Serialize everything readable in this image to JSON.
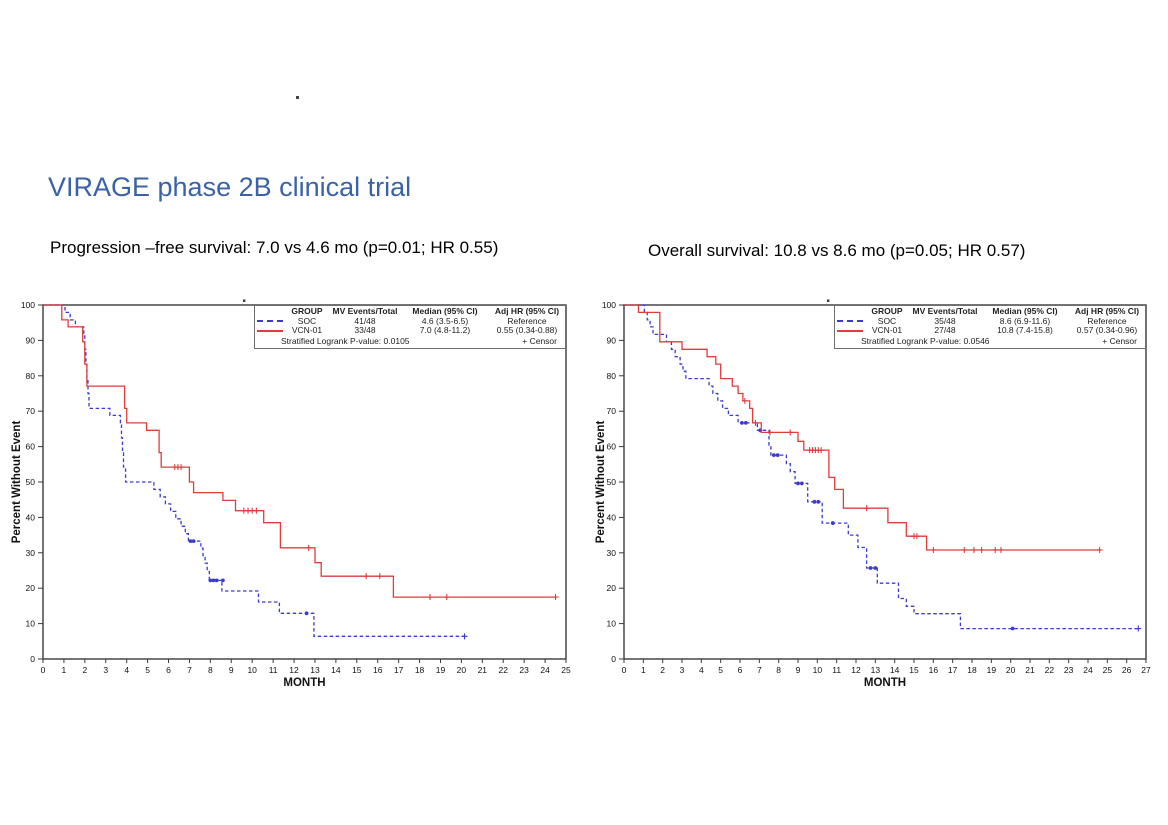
{
  "page": {
    "title": "VIRAGE phase 2B clinical trial",
    "title_color": "#3A62A8",
    "background": "#ffffff"
  },
  "chart_data": [
    {
      "id": "progression_free_survival",
      "type": "line",
      "subtype": "kaplan_meier_step",
      "title": "Progression –free survival: 7.0 vs 4.6 mo (p=0.01; HR 0.55)",
      "xlabel": "MONTH",
      "ylabel": "Percent Without Event",
      "xlim": [
        0,
        25
      ],
      "xtick_step": 1,
      "ylim": [
        0,
        100
      ],
      "ytick_step": 10,
      "grid": false,
      "legend_position": "top-right-inside",
      "legend": {
        "headers": [
          "GROUP",
          "MV Events/Total",
          "Median (95% CI)",
          "Adj HR (95% CI)"
        ],
        "rows": [
          {
            "group": "SOC",
            "events_total": "41/48",
            "median_ci": "4.6 (3.5-6.5)",
            "adj_hr": "Reference"
          },
          {
            "group": "VCN-01",
            "events_total": "33/48",
            "median_ci": "7.0 (4.8-11.2)",
            "adj_hr": "0.55 (0.34-0.88)"
          }
        ],
        "footer_left": "Stratified Logrank P-value: 0.0105",
        "footer_right": "+  Censor"
      },
      "series": [
        {
          "name": "SOC",
          "color": "#3b3bcf",
          "dash": "3.5 2.5",
          "censor_style": "dot",
          "start": [
            0,
            100
          ],
          "steps": [
            [
              1.05,
              97.9
            ],
            [
              1.3,
              95.8
            ],
            [
              1.55,
              93.8
            ],
            [
              1.95,
              91.7
            ],
            [
              2.0,
              87.5
            ],
            [
              2.05,
              83.3
            ],
            [
              2.1,
              79.2
            ],
            [
              2.15,
              75.0
            ],
            [
              2.2,
              70.8
            ],
            [
              3.2,
              68.8
            ],
            [
              3.7,
              66.7
            ],
            [
              3.75,
              62.5
            ],
            [
              3.8,
              58.3
            ],
            [
              3.85,
              54.2
            ],
            [
              3.95,
              50.0
            ],
            [
              5.3,
              47.9
            ],
            [
              5.6,
              45.8
            ],
            [
              5.85,
              43.8
            ],
            [
              6.1,
              41.7
            ],
            [
              6.35,
              39.6
            ],
            [
              6.6,
              37.5
            ],
            [
              6.8,
              35.4
            ],
            [
              6.95,
              33.3
            ],
            [
              7.55,
              31.3
            ],
            [
              7.65,
              29.2
            ],
            [
              7.75,
              27.1
            ],
            [
              7.85,
              25.0
            ],
            [
              7.95,
              22.2
            ],
            [
              8.55,
              19.2
            ],
            [
              10.3,
              16.1
            ],
            [
              11.3,
              12.9
            ],
            [
              12.95,
              6.4
            ]
          ],
          "end_time": 20.15,
          "censors": [
            [
              7.05,
              33.3
            ],
            [
              7.2,
              33.3
            ],
            [
              8.0,
              22.2
            ],
            [
              8.15,
              22.2
            ],
            [
              8.3,
              22.2
            ],
            [
              8.6,
              22.2
            ],
            [
              12.6,
              12.9
            ],
            [
              20.15,
              6.4,
              "plus"
            ]
          ]
        },
        {
          "name": "VCN-01",
          "color": "#e03c3c",
          "dash": null,
          "censor_style": "plus",
          "start": [
            0,
            100
          ],
          "steps": [
            [
              0.9,
              95.8
            ],
            [
              1.2,
              93.8
            ],
            [
              1.9,
              89.6
            ],
            [
              2.0,
              83.3
            ],
            [
              2.1,
              77.1
            ],
            [
              3.9,
              70.8
            ],
            [
              4.0,
              66.7
            ],
            [
              4.95,
              64.6
            ],
            [
              5.55,
              58.3
            ],
            [
              5.65,
              54.2
            ],
            [
              7.0,
              50.0
            ],
            [
              7.2,
              47.0
            ],
            [
              8.6,
              44.8
            ],
            [
              9.2,
              41.9
            ],
            [
              10.55,
              38.5
            ],
            [
              11.35,
              31.4
            ],
            [
              13.0,
              27.2
            ],
            [
              13.3,
              23.4
            ],
            [
              16.75,
              17.5
            ]
          ],
          "end_time": 24.5,
          "censors": [
            [
              6.3,
              54.2
            ],
            [
              6.45,
              54.2
            ],
            [
              6.6,
              54.2
            ],
            [
              9.6,
              41.9
            ],
            [
              9.8,
              41.9
            ],
            [
              10.0,
              41.9
            ],
            [
              10.2,
              41.9
            ],
            [
              12.7,
              31.4
            ],
            [
              15.45,
              23.4
            ],
            [
              16.1,
              23.4
            ],
            [
              18.5,
              17.5
            ],
            [
              19.3,
              17.5
            ],
            [
              24.5,
              17.5
            ]
          ]
        }
      ]
    },
    {
      "id": "overall_survival",
      "type": "line",
      "subtype": "kaplan_meier_step",
      "title": "Overall survival: 10.8 vs 8.6 mo (p=0.05; HR 0.57)",
      "xlabel": "MONTH",
      "ylabel": "Percent Without Event",
      "xlim": [
        0,
        27
      ],
      "xtick_step": 1,
      "ylim": [
        0,
        100
      ],
      "ytick_step": 10,
      "grid": false,
      "legend_position": "top-right-inside",
      "legend": {
        "headers": [
          "GROUP",
          "MV Events/Total",
          "Median (95% CI)",
          "Adj HR (95% CI)"
        ],
        "rows": [
          {
            "group": "SOC",
            "events_total": "35/48",
            "median_ci": "8.6 (6.9-11.6)",
            "adj_hr": "Reference"
          },
          {
            "group": "VCN-01",
            "events_total": "27/48",
            "median_ci": "10.8 (7.4-15.8)",
            "adj_hr": "0.57 (0.34-0.96)"
          }
        ],
        "footer_left": "Stratified Logrank P-value: 0.0546",
        "footer_right": "+  Censor"
      },
      "series": [
        {
          "name": "SOC",
          "color": "#3b3bcf",
          "dash": "3.5 2.5",
          "censor_style": "dot",
          "start": [
            0,
            100
          ],
          "steps": [
            [
              1.05,
              97.9
            ],
            [
              1.2,
              95.8
            ],
            [
              1.35,
              93.8
            ],
            [
              1.5,
              91.7
            ],
            [
              2.2,
              89.6
            ],
            [
              2.45,
              87.5
            ],
            [
              2.65,
              85.4
            ],
            [
              2.9,
              83.3
            ],
            [
              3.05,
              81.3
            ],
            [
              3.2,
              79.2
            ],
            [
              4.4,
              77.1
            ],
            [
              4.6,
              75.0
            ],
            [
              4.85,
              72.9
            ],
            [
              5.1,
              70.8
            ],
            [
              5.4,
              68.8
            ],
            [
              5.9,
              66.7
            ],
            [
              6.9,
              64.6
            ],
            [
              7.5,
              60.4
            ],
            [
              7.6,
              57.6
            ],
            [
              8.4,
              55.2
            ],
            [
              8.6,
              52.9
            ],
            [
              8.85,
              49.6
            ],
            [
              9.5,
              44.4
            ],
            [
              10.25,
              38.4
            ],
            [
              11.6,
              35.0
            ],
            [
              12.1,
              31.5
            ],
            [
              12.55,
              25.7
            ],
            [
              13.1,
              21.4
            ],
            [
              14.2,
              17.1
            ],
            [
              14.6,
              14.9
            ],
            [
              15.0,
              12.8
            ],
            [
              17.4,
              8.6
            ]
          ],
          "end_time": 26.6,
          "censors": [
            [
              6.1,
              66.7
            ],
            [
              6.3,
              66.7
            ],
            [
              7.05,
              64.6
            ],
            [
              7.75,
              57.6
            ],
            [
              7.95,
              57.6
            ],
            [
              9.0,
              49.6
            ],
            [
              9.2,
              49.6
            ],
            [
              9.85,
              44.4
            ],
            [
              10.05,
              44.4
            ],
            [
              10.8,
              38.4
            ],
            [
              12.75,
              25.7
            ],
            [
              13.0,
              25.7
            ],
            [
              20.1,
              8.6
            ],
            [
              26.6,
              8.6,
              "plus"
            ]
          ]
        },
        {
          "name": "VCN-01",
          "color": "#e03c3c",
          "dash": null,
          "censor_style": "plus",
          "start": [
            0,
            100
          ],
          "steps": [
            [
              0.75,
              97.9
            ],
            [
              1.85,
              89.6
            ],
            [
              3.0,
              87.5
            ],
            [
              4.3,
              85.4
            ],
            [
              4.75,
              83.3
            ],
            [
              5.0,
              79.2
            ],
            [
              5.6,
              77.1
            ],
            [
              5.9,
              75.0
            ],
            [
              6.15,
              72.9
            ],
            [
              6.5,
              70.8
            ],
            [
              6.65,
              66.7
            ],
            [
              7.1,
              64.0
            ],
            [
              9.0,
              61.5
            ],
            [
              9.3,
              59.0
            ],
            [
              10.6,
              51.3
            ],
            [
              10.9,
              47.9
            ],
            [
              11.35,
              42.6
            ],
            [
              13.65,
              38.5
            ],
            [
              14.6,
              34.7
            ],
            [
              15.65,
              30.8
            ]
          ],
          "end_time": 24.6,
          "censors": [
            [
              6.25,
              72.9
            ],
            [
              6.8,
              66.7
            ],
            [
              7.55,
              64.0
            ],
            [
              8.6,
              64.0
            ],
            [
              9.6,
              59.0
            ],
            [
              9.75,
              59.0
            ],
            [
              9.9,
              59.0
            ],
            [
              10.05,
              59.0
            ],
            [
              10.2,
              59.0
            ],
            [
              12.55,
              42.6
            ],
            [
              15.0,
              34.7
            ],
            [
              15.15,
              34.7
            ],
            [
              16.0,
              30.8
            ],
            [
              17.6,
              30.8
            ],
            [
              18.1,
              30.8
            ],
            [
              18.5,
              30.8
            ],
            [
              19.2,
              30.8
            ],
            [
              19.5,
              30.8
            ],
            [
              24.6,
              30.8
            ]
          ]
        }
      ]
    }
  ]
}
